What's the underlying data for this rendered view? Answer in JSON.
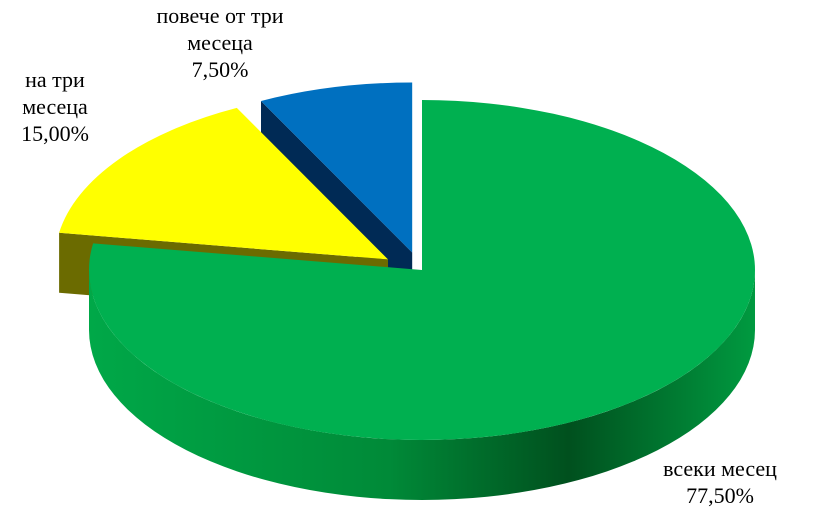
{
  "chart_data": {
    "type": "pie3d",
    "categories": [
      "всеки месец",
      "на три месеца",
      "повече от три месеца"
    ],
    "values": [
      77.5,
      15,
      7.5
    ],
    "value_labels": [
      "77,50%",
      "15,00%",
      "7,50%"
    ],
    "colors": [
      "#00b050",
      "#ffff00",
      "#0070c0"
    ]
  }
}
